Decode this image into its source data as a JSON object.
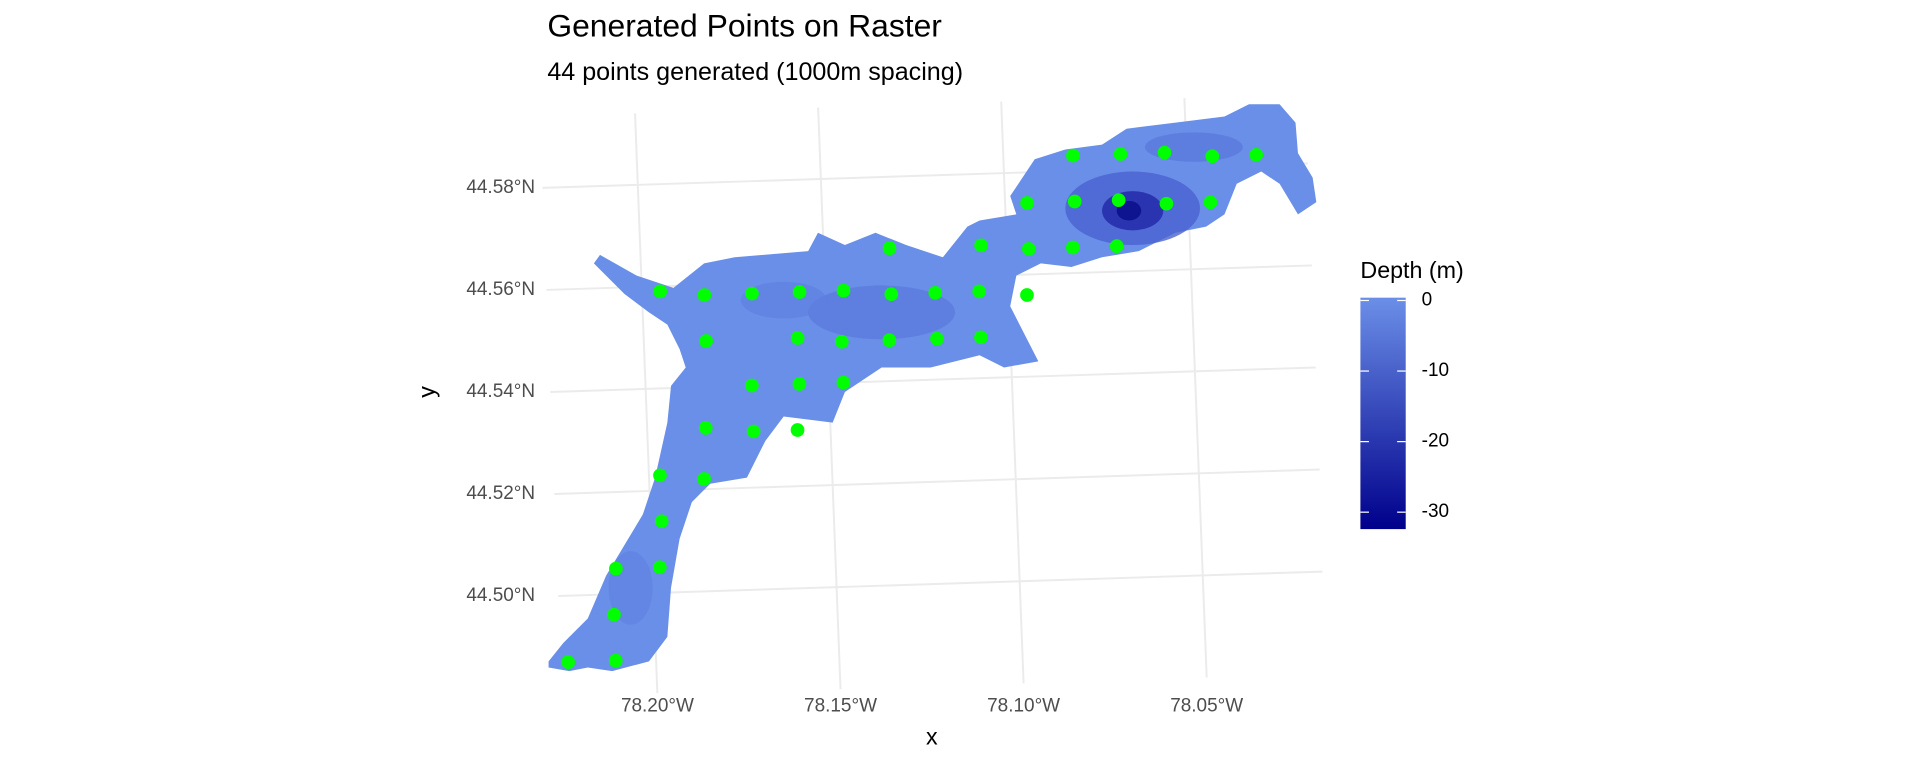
{
  "chart_data": {
    "type": "scatter",
    "title": "Generated Points on Raster",
    "subtitle": "44 points generated (1000m spacing)",
    "xlabel": "x",
    "ylabel": "y",
    "x": [
      -78.081,
      -78.068,
      -78.056,
      -78.043,
      -78.031,
      -78.094,
      -78.081,
      -78.069,
      -78.056,
      -78.044,
      -78.132,
      -78.107,
      -78.094,
      -78.082,
      -78.07,
      -78.195,
      -78.183,
      -78.17,
      -78.157,
      -78.145,
      -78.132,
      -78.12,
      -78.108,
      -78.095,
      -78.183,
      -78.158,
      -78.146,
      -78.133,
      -78.12,
      -78.108,
      -78.171,
      -78.158,
      -78.146,
      -78.184,
      -78.171,
      -78.159,
      -78.197,
      -78.185,
      -78.197,
      -78.21,
      -78.198,
      -78.211,
      -78.224,
      -78.211
    ],
    "y": [
      44.583,
      44.583,
      44.583,
      44.582,
      44.582,
      44.574,
      44.574,
      44.574,
      44.573,
      44.573,
      44.566,
      44.566,
      44.565,
      44.565,
      44.565,
      44.559,
      44.558,
      44.558,
      44.558,
      44.558,
      44.557,
      44.557,
      44.557,
      44.556,
      44.549,
      44.549,
      44.548,
      44.548,
      44.548,
      44.548,
      44.54,
      44.54,
      44.54,
      44.532,
      44.531,
      44.531,
      44.523,
      44.522,
      44.514,
      44.505,
      44.505,
      44.496,
      44.487,
      44.487
    ],
    "color": "#00ff00",
    "xlim": [
      -78.226,
      -78.017
    ],
    "ylim": [
      44.48,
      44.594
    ],
    "xticks": [
      {
        "value": -78.2,
        "label": "78.20°W"
      },
      {
        "value": -78.15,
        "label": "78.15°W"
      },
      {
        "value": -78.1,
        "label": "78.10°W"
      },
      {
        "value": -78.05,
        "label": "78.05°W"
      }
    ],
    "yticks": [
      {
        "value": 44.5,
        "label": "44.50°N"
      },
      {
        "value": 44.52,
        "label": "44.52°N"
      },
      {
        "value": 44.54,
        "label": "44.54°N"
      },
      {
        "value": 44.56,
        "label": "44.56°N"
      },
      {
        "value": 44.58,
        "label": "44.58°N"
      }
    ],
    "grid": true,
    "legend": {
      "title": "Depth (m)",
      "ticks": [
        0,
        -10,
        -20,
        -30
      ],
      "lim": [
        -32.4,
        0.4
      ],
      "colors": [
        "#00008b",
        "#6b8fe8"
      ]
    }
  }
}
